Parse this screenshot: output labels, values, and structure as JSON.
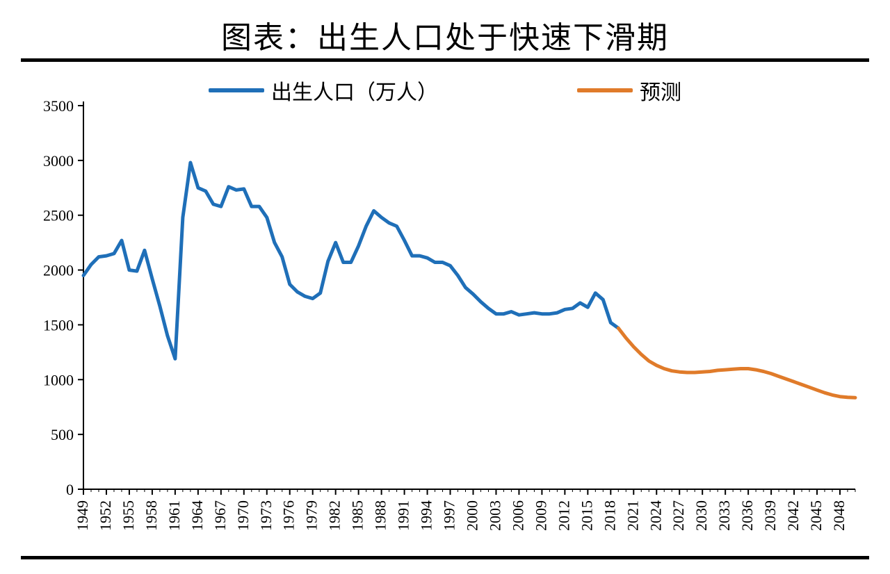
{
  "title": "图表：出生人口处于快速下滑期",
  "chart": {
    "type": "line",
    "background_color": "#ffffff",
    "rule_color": "#000000",
    "axis_color": "#000000",
    "tick_font_size": 22,
    "title_font_size": 44,
    "legend_font_size": 30,
    "line_width": 5,
    "y": {
      "min": 0,
      "max": 3500,
      "tick_step": 500,
      "ticks": [
        0,
        500,
        1000,
        1500,
        2000,
        2500,
        3000,
        3500
      ]
    },
    "x": {
      "start": 1949,
      "end": 2050,
      "tick_step": 3,
      "ticks": [
        1949,
        1952,
        1955,
        1958,
        1961,
        1964,
        1967,
        1970,
        1973,
        1976,
        1979,
        1982,
        1985,
        1988,
        1991,
        1994,
        1997,
        2000,
        2003,
        2006,
        2009,
        2012,
        2015,
        2018,
        2021,
        2024,
        2027,
        2030,
        2033,
        2036,
        2039,
        2042,
        2045,
        2048
      ]
    },
    "legend": [
      {
        "label": "出生人口（万人）",
        "color": "#1f6fb8"
      },
      {
        "label": "预测",
        "color": "#e07b2a"
      }
    ],
    "series": [
      {
        "name": "出生人口（万人）",
        "color": "#1f6fb8",
        "points": [
          [
            1949,
            1950
          ],
          [
            1950,
            2050
          ],
          [
            1951,
            2120
          ],
          [
            1952,
            2130
          ],
          [
            1953,
            2150
          ],
          [
            1954,
            2270
          ],
          [
            1955,
            2000
          ],
          [
            1956,
            1990
          ],
          [
            1957,
            2180
          ],
          [
            1958,
            1920
          ],
          [
            1959,
            1670
          ],
          [
            1960,
            1400
          ],
          [
            1961,
            1190
          ],
          [
            1962,
            2480
          ],
          [
            1963,
            2980
          ],
          [
            1964,
            2750
          ],
          [
            1965,
            2720
          ],
          [
            1966,
            2600
          ],
          [
            1967,
            2580
          ],
          [
            1968,
            2760
          ],
          [
            1969,
            2730
          ],
          [
            1970,
            2740
          ],
          [
            1971,
            2580
          ],
          [
            1972,
            2580
          ],
          [
            1973,
            2480
          ],
          [
            1974,
            2250
          ],
          [
            1975,
            2120
          ],
          [
            1976,
            1870
          ],
          [
            1977,
            1800
          ],
          [
            1978,
            1760
          ],
          [
            1979,
            1740
          ],
          [
            1980,
            1790
          ],
          [
            1981,
            2080
          ],
          [
            1982,
            2250
          ],
          [
            1983,
            2070
          ],
          [
            1984,
            2070
          ],
          [
            1985,
            2220
          ],
          [
            1986,
            2400
          ],
          [
            1987,
            2540
          ],
          [
            1988,
            2480
          ],
          [
            1989,
            2430
          ],
          [
            1990,
            2400
          ],
          [
            1991,
            2270
          ],
          [
            1992,
            2130
          ],
          [
            1993,
            2130
          ],
          [
            1994,
            2110
          ],
          [
            1995,
            2070
          ],
          [
            1996,
            2070
          ],
          [
            1997,
            2040
          ],
          [
            1998,
            1950
          ],
          [
            1999,
            1840
          ],
          [
            2000,
            1780
          ],
          [
            2001,
            1710
          ],
          [
            2002,
            1650
          ],
          [
            2003,
            1600
          ],
          [
            2004,
            1600
          ],
          [
            2005,
            1620
          ],
          [
            2006,
            1590
          ],
          [
            2007,
            1600
          ],
          [
            2008,
            1610
          ],
          [
            2009,
            1600
          ],
          [
            2010,
            1600
          ],
          [
            2011,
            1610
          ],
          [
            2012,
            1640
          ],
          [
            2013,
            1650
          ],
          [
            2014,
            1700
          ],
          [
            2015,
            1660
          ],
          [
            2016,
            1790
          ],
          [
            2017,
            1730
          ],
          [
            2018,
            1520
          ],
          [
            2019,
            1470
          ]
        ]
      },
      {
        "name": "预测",
        "color": "#e07b2a",
        "points": [
          [
            2019,
            1470
          ],
          [
            2020,
            1380
          ],
          [
            2021,
            1300
          ],
          [
            2022,
            1230
          ],
          [
            2023,
            1170
          ],
          [
            2024,
            1130
          ],
          [
            2025,
            1100
          ],
          [
            2026,
            1080
          ],
          [
            2027,
            1070
          ],
          [
            2028,
            1065
          ],
          [
            2029,
            1065
          ],
          [
            2030,
            1070
          ],
          [
            2031,
            1075
          ],
          [
            2032,
            1085
          ],
          [
            2033,
            1090
          ],
          [
            2034,
            1095
          ],
          [
            2035,
            1100
          ],
          [
            2036,
            1100
          ],
          [
            2037,
            1090
          ],
          [
            2038,
            1075
          ],
          [
            2039,
            1055
          ],
          [
            2040,
            1030
          ],
          [
            2041,
            1005
          ],
          [
            2042,
            980
          ],
          [
            2043,
            955
          ],
          [
            2044,
            930
          ],
          [
            2045,
            905
          ],
          [
            2046,
            880
          ],
          [
            2047,
            860
          ],
          [
            2048,
            845
          ],
          [
            2049,
            838
          ],
          [
            2050,
            835
          ]
        ]
      }
    ]
  }
}
